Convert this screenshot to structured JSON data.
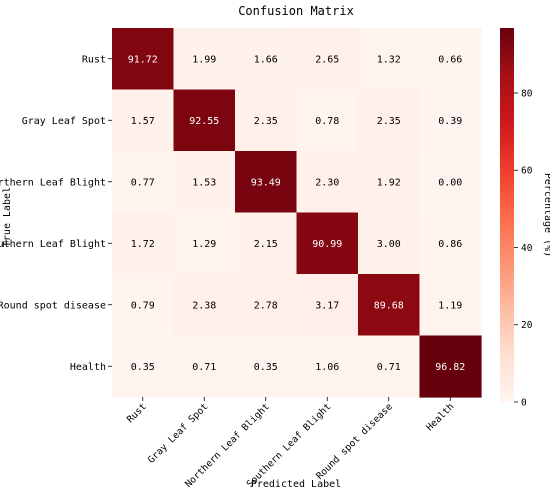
{
  "chart_data": {
    "type": "heatmap",
    "title": "Confusion Matrix",
    "xlabel": "Predicted Label",
    "ylabel": "True Label",
    "row_labels": [
      "Rust",
      "Gray Leaf Spot",
      "Northern Leaf Blight",
      "Southern Leaf Blight",
      "Round spot disease",
      "Health"
    ],
    "col_labels": [
      "Rust",
      "Gray Leaf Spot",
      "Northern Leaf Blight",
      "Southern Leaf Blight",
      "Round spot disease",
      "Health"
    ],
    "values": [
      [
        91.72,
        1.99,
        1.66,
        2.65,
        1.32,
        0.66
      ],
      [
        1.57,
        92.55,
        2.35,
        0.78,
        2.35,
        0.39
      ],
      [
        0.77,
        1.53,
        93.49,
        2.3,
        1.92,
        0.0
      ],
      [
        1.72,
        1.29,
        2.15,
        90.99,
        3.0,
        0.86
      ],
      [
        0.79,
        2.38,
        2.78,
        3.17,
        89.68,
        1.19
      ],
      [
        0.35,
        0.71,
        0.35,
        1.06,
        0.71,
        96.82
      ]
    ],
    "value_labels": [
      [
        "91.72",
        "1.99",
        "1.66",
        "2.65",
        "1.32",
        "0.66"
      ],
      [
        "1.57",
        "92.55",
        "2.35",
        "0.78",
        "2.35",
        "0.39"
      ],
      [
        "0.77",
        "1.53",
        "93.49",
        "2.30",
        "1.92",
        "0.00"
      ],
      [
        "1.72",
        "1.29",
        "2.15",
        "90.99",
        "3.00",
        "0.86"
      ],
      [
        "0.79",
        "2.38",
        "2.78",
        "3.17",
        "89.68",
        "1.19"
      ],
      [
        "0.35",
        "0.71",
        "0.35",
        "1.06",
        "0.71",
        "96.82"
      ]
    ],
    "colorbar": {
      "label": "Percentage (%)",
      "range": [
        0,
        96.82
      ],
      "ticks": [
        0,
        20,
        40,
        60,
        80
      ],
      "tick_labels": [
        "0",
        "20",
        "40",
        "60",
        "80"
      ],
      "colormap": "Reds"
    }
  }
}
